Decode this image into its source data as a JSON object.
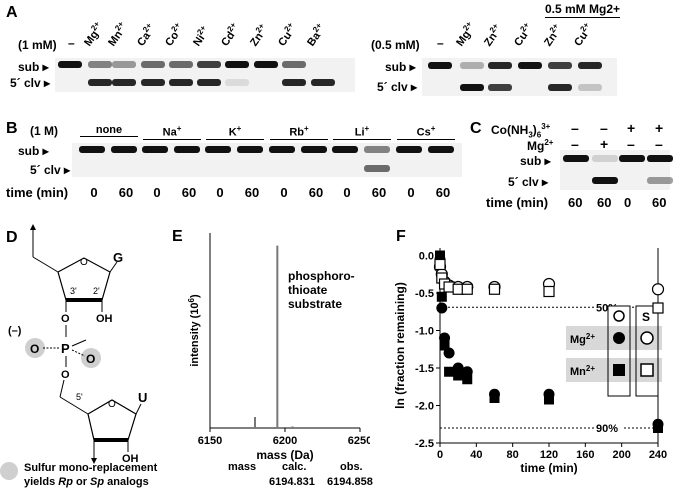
{
  "panelA": {
    "label": "A",
    "left": {
      "conc": "(1 mM)",
      "dash": "–",
      "ions": [
        "Mg2+",
        "Mn2+",
        "Ca2+",
        "Co2+",
        "Ni2+",
        "Cd2+",
        "Zn2+",
        "Cu2+",
        "Ba2+"
      ],
      "sub_label": "sub ▸",
      "clv_label": "5´ clv ▸"
    },
    "right": {
      "bracket": "0.5 mM Mg2+",
      "conc": "(0.5 mM)",
      "dash": "–",
      "ions": [
        "Mg2+",
        "Zn2+",
        "Cu2+",
        "Zn2+",
        "Cu2+"
      ],
      "sub_label": "sub ▸",
      "clv_label": "5´ clv ▸"
    }
  },
  "panelB": {
    "label": "B",
    "conc": "(1 M)",
    "groups": [
      "none",
      "Na+",
      "K+",
      "Rb+",
      "Li+",
      "Cs+"
    ],
    "sub_label": "sub ▸",
    "clv_label": "5´ clv ▸",
    "time_label": "time (min)",
    "times": [
      "0",
      "60",
      "0",
      "60",
      "0",
      "60",
      "0",
      "60",
      "0",
      "60",
      "0",
      "60"
    ]
  },
  "panelC": {
    "label": "C",
    "row1_label": "Co(NH3)63+",
    "row1": [
      "–",
      "–",
      "+",
      "+"
    ],
    "row2_label": "Mg2+",
    "row2": [
      "–",
      "+",
      "–",
      "–"
    ],
    "sub_label": "sub ▸",
    "clv_label": "5´ clv ▸",
    "time_label": "time (min)",
    "times": [
      "60",
      "60",
      "0",
      "60"
    ]
  },
  "panelD": {
    "label": "D",
    "base_top": "G",
    "base_bottom": "U",
    "c3": "3'",
    "c2": "2'",
    "c5": "5'",
    "oh": "OH",
    "charge": "(–)",
    "o": "O",
    "p": "P",
    "legend": "Sulfur mono-replacement yields Rp or Sp analogs"
  },
  "panelE": {
    "label": "E",
    "ylabel": "intensity (106)",
    "xlabel": "mass (Da)",
    "xticks": [
      "6150",
      "6200",
      "6250"
    ],
    "annotation": "phosphoro- thioate substrate",
    "mass_label": "mass",
    "calc_label": "calc.",
    "calc_value": "6194.831",
    "obs_label": "obs.",
    "obs_value": "6194.858"
  },
  "panelF": {
    "label": "F",
    "ylabel": "ln (fraction remaining)",
    "xlabel": "time (min)",
    "yticks": [
      "0.0",
      "-0.5",
      "-1.0",
      "-1.5",
      "-2.0",
      "-2.5"
    ],
    "xticks": [
      "0",
      "40",
      "80",
      "120",
      "160",
      "200",
      "240"
    ],
    "line50": "50%",
    "line90": "90%",
    "legend_o": "O",
    "legend_s": "S",
    "legend_mg": "Mg2+",
    "legend_mn": "Mn2+"
  },
  "chart_data": [
    {
      "type": "bar",
      "title": "",
      "xlabel": "mass (Da)",
      "ylabel": "intensity (10^6)",
      "xlim": [
        6150,
        6250
      ],
      "x": [
        6180,
        6194.9,
        6205
      ],
      "values": [
        0.35,
        5.8,
        0.05
      ],
      "annotation": "phosphorothioate substrate"
    },
    {
      "type": "scatter",
      "title": "",
      "xlabel": "time (min)",
      "ylabel": "ln (fraction remaining)",
      "xlim": [
        0,
        240
      ],
      "ylim": [
        -2.5,
        0.1
      ],
      "reference_lines": [
        {
          "label": "50%",
          "y": -0.69
        },
        {
          "label": "90%",
          "y": -2.3
        }
      ],
      "series": [
        {
          "name": "Mg2+ O",
          "marker": "filled circle",
          "x": [
            0,
            2,
            5,
            10,
            20,
            30,
            60,
            120,
            240
          ],
          "y": [
            -0.05,
            -0.7,
            -1.1,
            -1.3,
            -1.5,
            -1.55,
            -1.85,
            -1.85,
            -2.25
          ]
        },
        {
          "name": "Mg2+ S",
          "marker": "open circle",
          "x": [
            0,
            2,
            5,
            10,
            20,
            30,
            60,
            120,
            240
          ],
          "y": [
            -0.15,
            -0.25,
            -0.35,
            -0.4,
            -0.42,
            -0.42,
            -0.42,
            -0.38,
            -0.45
          ]
        },
        {
          "name": "Mn2+ O",
          "marker": "filled square",
          "x": [
            0,
            2,
            5,
            10,
            20,
            30,
            60,
            120,
            240
          ],
          "y": [
            0.0,
            -0.55,
            -1.2,
            -1.55,
            -1.6,
            -1.65,
            -1.9,
            -1.92,
            -2.3
          ]
        },
        {
          "name": "Mn2+ S",
          "marker": "open square",
          "x": [
            0,
            2,
            5,
            10,
            20,
            30,
            60,
            120,
            240
          ],
          "y": [
            -0.12,
            -0.3,
            -0.38,
            -0.42,
            -0.45,
            -0.45,
            -0.45,
            -0.48,
            -0.7
          ]
        }
      ]
    }
  ]
}
